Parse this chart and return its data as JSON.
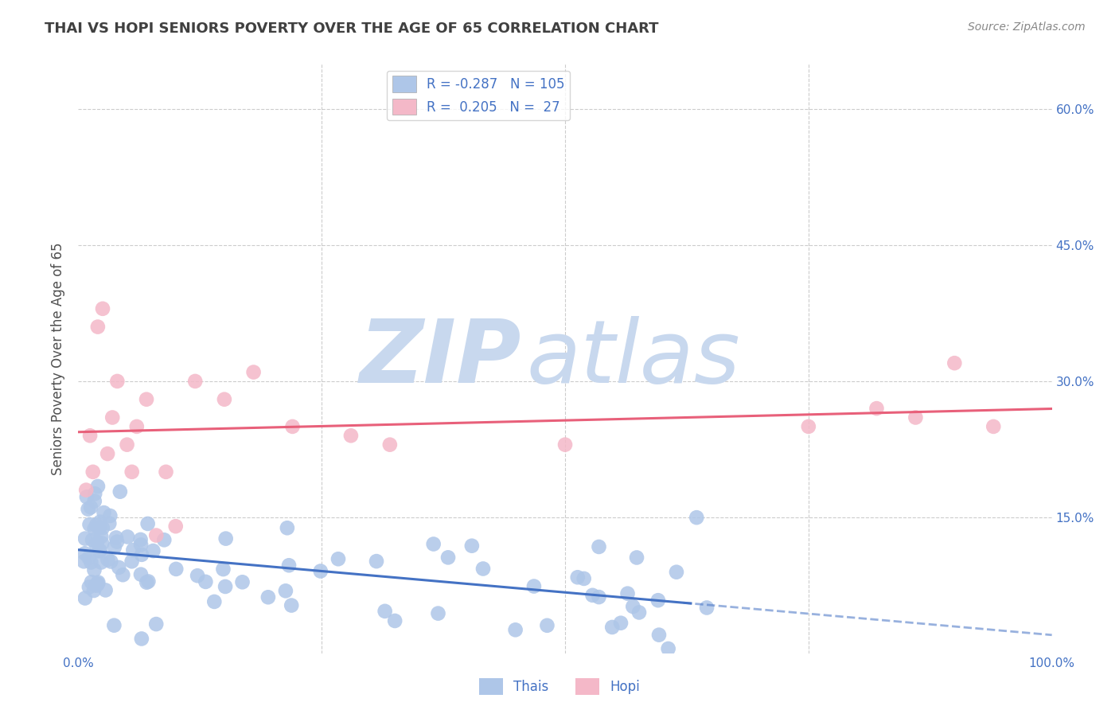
{
  "title": "THAI VS HOPI SENIORS POVERTY OVER THE AGE OF 65 CORRELATION CHART",
  "source": "Source: ZipAtlas.com",
  "ylabel": "Seniors Poverty Over the Age of 65",
  "watermark_zip": "ZIP",
  "watermark_atlas": "atlas",
  "xlim": [
    0.0,
    1.0
  ],
  "ylim": [
    0.0,
    0.65
  ],
  "thai_line_color": "#4472c4",
  "hopi_line_color": "#e8607a",
  "thai_scatter_color": "#aec6e8",
  "hopi_scatter_color": "#f4b8c8",
  "background_color": "#ffffff",
  "grid_color": "#cccccc",
  "title_color": "#404040",
  "axis_label_color": "#505050",
  "tick_label_color": "#4472c4",
  "watermark_color": "#c8d8ee",
  "source_color": "#888888"
}
